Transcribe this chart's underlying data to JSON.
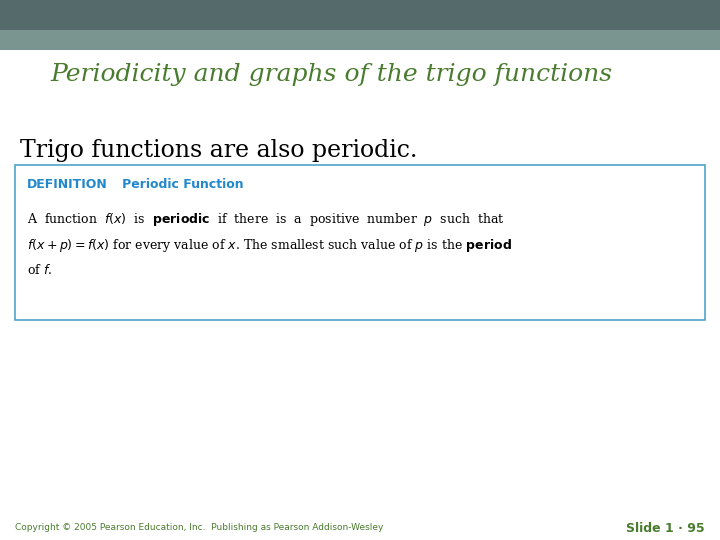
{
  "title": "Periodicity and graphs of the trigo functions",
  "title_color": "#4a7c2f",
  "title_fontsize": 18,
  "subtitle": "Trigo functions are also periodic.",
  "subtitle_fontsize": 17,
  "slide_bg_color": "#ffffff",
  "top_bar_color1": "#5c7a7a",
  "top_bar_color2": "#7a9490",
  "box_border_color": "#4da6c8",
  "box_bg_color": "#ffffff",
  "def_label": "DEFINITION",
  "def_label_color": "#2288cc",
  "def_label_fontsize": 9,
  "periodic_label": "   Periodic Function",
  "periodic_label_color": "#2288cc",
  "periodic_label_fontsize": 9,
  "body_fontsize": 9,
  "copyright_text": "Copyright © 2005 Pearson Education, Inc.  Publishing as Pearson Addison-Wesley",
  "copyright_color": "#4a7c2f",
  "copyright_fontsize": 6.5,
  "slide_label": "Slide 1 · 95",
  "slide_label_color": "#4a7c2f",
  "slide_label_fontsize": 9
}
